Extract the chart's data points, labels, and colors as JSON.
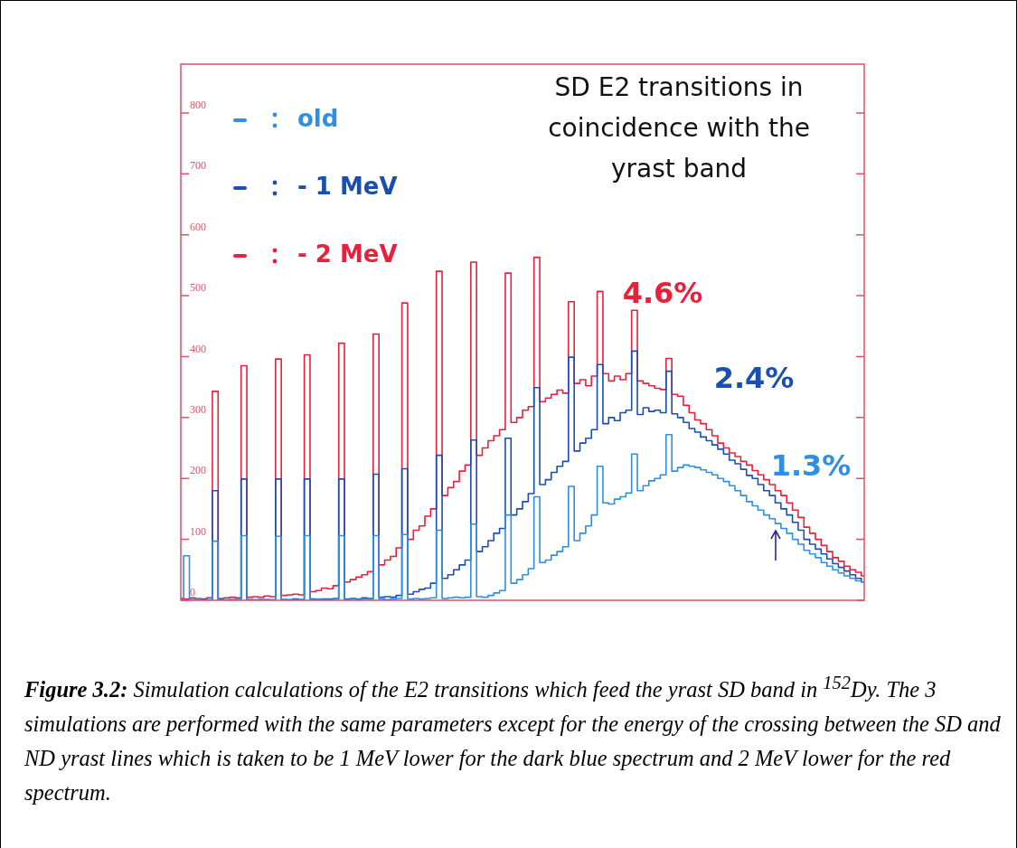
{
  "chart_data": {
    "type": "step",
    "title": "SD E2 transitions in coincidence with the yrast band",
    "categories": [
      null,
      null,
      null,
      null,
      null,
      null,
      null,
      null,
      null,
      null,
      null,
      null,
      null,
      null,
      null,
      null,
      null,
      null,
      null,
      null,
      null,
      null,
      null,
      null,
      null,
      null,
      null,
      null,
      null,
      null,
      null,
      null,
      null,
      null,
      null,
      null,
      null,
      null,
      null,
      null,
      null,
      null,
      null,
      null,
      null,
      null,
      null,
      null,
      null,
      null,
      null,
      null,
      null,
      null,
      null,
      null,
      null,
      null,
      null,
      null,
      null,
      null,
      null,
      null,
      null,
      null,
      null,
      null,
      null,
      null,
      null,
      null,
      null,
      null,
      null,
      null,
      null,
      null,
      null,
      null,
      null,
      null,
      null,
      null,
      null,
      null,
      null,
      null,
      null,
      null,
      null,
      null,
      null,
      null,
      null,
      null,
      null,
      null,
      null,
      null,
      null,
      null,
      null,
      null,
      null,
      null,
      null,
      null,
      null,
      null,
      null,
      null,
      null,
      null,
      null,
      null,
      null,
      null,
      null,
      null
    ],
    "series": [
      {
        "name": "old",
        "color": "#2f8fe0",
        "values": [
          1,
          73,
          0,
          1,
          0,
          1,
          97,
          0,
          1,
          0,
          1,
          106,
          0,
          1,
          1,
          0,
          1,
          105,
          1,
          0,
          1,
          1,
          106,
          1,
          2,
          1,
          1,
          2,
          106,
          1,
          2,
          1,
          2,
          2,
          106,
          2,
          1,
          2,
          3,
          108,
          2,
          3,
          2,
          3,
          4,
          115,
          3,
          4,
          5,
          4,
          5,
          125,
          6,
          5,
          8,
          12,
          16,
          140,
          28,
          34,
          42,
          52,
          170,
          62,
          66,
          74,
          80,
          88,
          187,
          98,
          110,
          122,
          140,
          220,
          160,
          158,
          166,
          170,
          176,
          240,
          180,
          188,
          196,
          200,
          206,
          272,
          212,
          218,
          222,
          220,
          218,
          214,
          210,
          206,
          200,
          195,
          188,
          180,
          172,
          162,
          155,
          148,
          140,
          134,
          126,
          118,
          110,
          100,
          92,
          82,
          76,
          70,
          62,
          56,
          50,
          45,
          40,
          36,
          32,
          30
        ]
      },
      {
        "name": "- 1 MeV",
        "color": "#1b4fae",
        "values": [
          1,
          0,
          1,
          0,
          1,
          0,
          180,
          1,
          0,
          1,
          1,
          199,
          1,
          0,
          1,
          1,
          0,
          199,
          1,
          1,
          2,
          1,
          199,
          2,
          1,
          2,
          2,
          3,
          199,
          2,
          3,
          2,
          4,
          3,
          207,
          5,
          6,
          5,
          8,
          216,
          10,
          14,
          18,
          20,
          28,
          238,
          36,
          42,
          50,
          58,
          66,
          263,
          80,
          88,
          98,
          110,
          118,
          266,
          140,
          150,
          162,
          175,
          349,
          190,
          198,
          210,
          220,
          228,
          399,
          245,
          258,
          266,
          280,
          387,
          290,
          300,
          295,
          308,
          312,
          409,
          305,
          316,
          310,
          312,
          308,
          376,
          306,
          300,
          292,
          282,
          276,
          268,
          262,
          255,
          248,
          240,
          230,
          224,
          215,
          205,
          200,
          190,
          180,
          172,
          160,
          150,
          140,
          128,
          115,
          100,
          92,
          84,
          76,
          68,
          60,
          54,
          48,
          42,
          36,
          30
        ]
      },
      {
        "name": "- 2 MeV",
        "color": "#e8203c",
        "values": [
          3,
          2,
          4,
          3,
          2,
          4,
          343,
          3,
          4,
          5,
          4,
          385,
          5,
          6,
          5,
          7,
          6,
          396,
          8,
          9,
          10,
          9,
          403,
          14,
          16,
          20,
          19,
          24,
          422,
          30,
          34,
          38,
          42,
          47,
          437,
          58,
          66,
          72,
          86,
          488,
          100,
          115,
          122,
          138,
          150,
          540,
          172,
          185,
          195,
          212,
          222,
          555,
          238,
          250,
          262,
          270,
          280,
          537,
          292,
          300,
          312,
          318,
          563,
          326,
          332,
          338,
          345,
          340,
          490,
          356,
          362,
          352,
          368,
          507,
          372,
          360,
          368,
          362,
          372,
          476,
          360,
          356,
          352,
          348,
          346,
          397,
          338,
          335,
          320,
          308,
          296,
          290,
          280,
          270,
          258,
          250,
          242,
          236,
          228,
          222,
          213,
          206,
          198,
          190,
          180,
          172,
          160,
          148,
          136,
          120,
          110,
          100,
          90,
          80,
          70,
          64,
          56,
          50,
          46,
          40
        ]
      }
    ],
    "ylim": [
      0,
      880
    ],
    "yticks": [
      0,
      100,
      200,
      300,
      400,
      500,
      600,
      700,
      800
    ],
    "legend": "top left",
    "annotations": [
      "4.6%",
      "2.4%",
      "1.3%",
      "Figure 3.2: Simulation calculations of the E2 transitions which feed the yrast SD band in $^{152}$Dy. The 3 simulations are performed with the same parameters except for the energy of the crossing between the SD and ND yrast lines which is taken to be 1 MeV lower for the dark blue spectrum and 2 MeV lower for the red spectrum."
    ]
  }
}
